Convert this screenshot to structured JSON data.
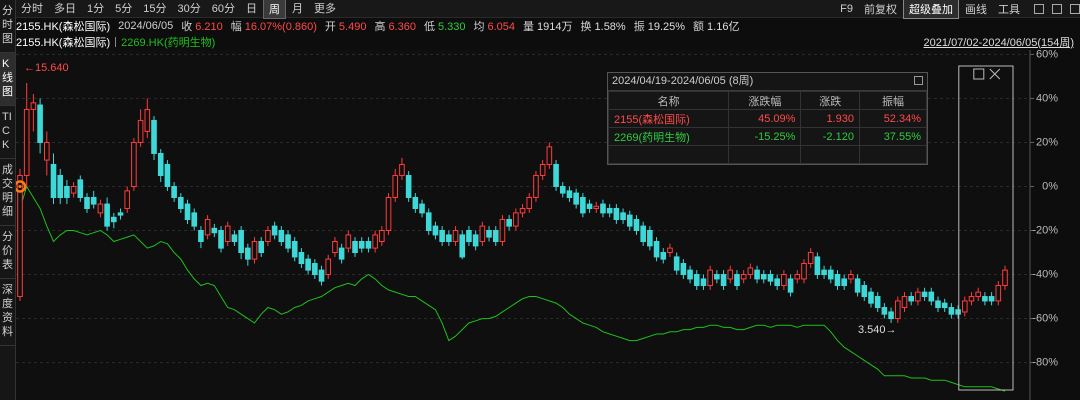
{
  "toolbar": {
    "tabs": [
      {
        "label": "分时"
      },
      {
        "label": "多日"
      },
      {
        "label": "1分"
      },
      {
        "label": "5分"
      },
      {
        "label": "15分"
      },
      {
        "label": "30分"
      },
      {
        "label": "60分"
      },
      {
        "label": "日"
      },
      {
        "label": "周",
        "active": true
      },
      {
        "label": "月"
      },
      {
        "label": "更多"
      }
    ],
    "tools": [
      {
        "label": "F9"
      },
      {
        "label": "前复权"
      },
      {
        "label": "超级叠加",
        "active": true
      },
      {
        "label": "画线"
      },
      {
        "label": "工具"
      }
    ]
  },
  "sidebar": [
    {
      "label": "分时图"
    },
    {
      "label": "K线图",
      "active": true
    },
    {
      "label": "TICK"
    },
    {
      "label": "成交明细"
    },
    {
      "label": "分价表"
    },
    {
      "label": "深度资料"
    }
  ],
  "quote": {
    "symbol": "2155.HK(森松国际)",
    "date": "2024/06/05",
    "fields": [
      {
        "label": "收",
        "value": "6.210",
        "color": "#ff4a4a"
      },
      {
        "label": "幅",
        "value": "16.07%(0.860)",
        "color": "#ff4a4a"
      },
      {
        "label": "开",
        "value": "5.490",
        "color": "#ff4a4a"
      },
      {
        "label": "高",
        "value": "6.360",
        "color": "#ff4a4a"
      },
      {
        "label": "低",
        "value": "5.330",
        "color": "#2ecc40"
      },
      {
        "label": "均",
        "value": "6.054",
        "color": "#ff4a4a"
      },
      {
        "label": "量",
        "value": "1914万",
        "color": "#dddddd"
      },
      {
        "label": "换",
        "value": "1.58%",
        "color": "#dddddd"
      },
      {
        "label": "振",
        "value": "19.25%",
        "color": "#dddddd"
      },
      {
        "label": "额",
        "value": "1.16亿",
        "color": "#dddddd"
      }
    ]
  },
  "chart_data": {
    "type": "candlestick",
    "range": "2021/07/02-2024/06/05(154周)",
    "annotations": [
      {
        "text": "←15.640"
      },
      {
        "text": "3.540→"
      }
    ],
    "ylim": [
      -97,
      62
    ],
    "yticks": [
      {
        "value": 60,
        "label": "60%"
      },
      {
        "value": 40,
        "label": "40%"
      },
      {
        "value": 20,
        "label": "20%"
      },
      {
        "value": 0,
        "label": "0%"
      },
      {
        "value": -20,
        "label": "-20%"
      },
      {
        "value": -40,
        "label": "-40%"
      },
      {
        "value": -60,
        "label": "-60%"
      },
      {
        "value": -80,
        "label": "-80%"
      }
    ],
    "grid": true,
    "series": [
      {
        "name": "2155.HK(森松国际)",
        "up_color": "#ff3b3b",
        "down_color": "#3fd8d8",
        "ohlc": [
          [
            -50,
            5,
            8,
            -52
          ],
          [
            5,
            35,
            47,
            0
          ],
          [
            35,
            38,
            42,
            25
          ],
          [
            37,
            20,
            40,
            15
          ],
          [
            12,
            20,
            25,
            5
          ],
          [
            10,
            -5,
            15,
            -8
          ],
          [
            5,
            -5,
            8,
            -8
          ],
          [
            0,
            -5,
            3,
            -8
          ],
          [
            -3,
            0,
            2,
            -5
          ],
          [
            3,
            -5,
            5,
            -7
          ],
          [
            -5,
            -10,
            -3,
            -12
          ],
          [
            -5,
            -8,
            -2,
            -10
          ],
          [
            -12,
            -8,
            -6,
            -14
          ],
          [
            -8,
            -18,
            -5,
            -20
          ],
          [
            -14,
            -16,
            -12,
            -19
          ],
          [
            -12,
            -13,
            -10,
            -15
          ],
          [
            -10,
            -2,
            0,
            -12
          ],
          [
            0,
            20,
            22,
            -2
          ],
          [
            20,
            30,
            35,
            18
          ],
          [
            25,
            35,
            40,
            22
          ],
          [
            30,
            15,
            32,
            12
          ],
          [
            15,
            5,
            17,
            2
          ],
          [
            10,
            0,
            12,
            -2
          ],
          [
            0,
            -5,
            2,
            -7
          ],
          [
            -5,
            -10,
            -3,
            -12
          ],
          [
            -8,
            -15,
            -6,
            -17
          ],
          [
            -12,
            -18,
            -10,
            -20
          ],
          [
            -20,
            -25,
            -18,
            -28
          ],
          [
            -22,
            -15,
            -13,
            -24
          ],
          [
            -19,
            -21,
            -17,
            -23
          ],
          [
            -20,
            -28,
            -18,
            -30
          ],
          [
            -25,
            -18,
            -16,
            -27
          ],
          [
            -22,
            -25,
            -20,
            -27
          ],
          [
            -20,
            -30,
            -18,
            -33
          ],
          [
            -28,
            -33,
            -26,
            -36
          ],
          [
            -33,
            -25,
            -23,
            -35
          ],
          [
            -25,
            -30,
            -23,
            -32
          ],
          [
            -25,
            -20,
            -18,
            -27
          ],
          [
            -18,
            -22,
            -16,
            -24
          ],
          [
            -20,
            -25,
            -18,
            -27
          ],
          [
            -22,
            -28,
            -20,
            -30
          ],
          [
            -25,
            -32,
            -23,
            -34
          ],
          [
            -30,
            -35,
            -28,
            -37
          ],
          [
            -33,
            -38,
            -31,
            -40
          ],
          [
            -35,
            -40,
            -33,
            -42
          ],
          [
            -38,
            -43,
            -36,
            -45
          ],
          [
            -40,
            -33,
            -31,
            -42
          ],
          [
            -30,
            -25,
            -23,
            -32
          ],
          [
            -28,
            -33,
            -26,
            -35
          ],
          [
            -28,
            -22,
            -20,
            -30
          ],
          [
            -25,
            -30,
            -23,
            -32
          ],
          [
            -25,
            -28,
            -23,
            -30
          ],
          [
            -25,
            -28,
            -23,
            -30
          ],
          [
            -28,
            -22,
            -20,
            -30
          ],
          [
            -25,
            -20,
            -18,
            -27
          ],
          [
            -20,
            -5,
            -3,
            -22
          ],
          [
            -5,
            5,
            8,
            -7
          ],
          [
            5,
            10,
            13,
            3
          ],
          [
            5,
            -5,
            7,
            -7
          ],
          [
            -5,
            -10,
            -3,
            -12
          ],
          [
            -8,
            -12,
            -6,
            -14
          ],
          [
            -12,
            -20,
            -10,
            -22
          ],
          [
            -18,
            -22,
            -16,
            -24
          ],
          [
            -20,
            -25,
            -18,
            -27
          ],
          [
            -22,
            -25,
            -20,
            -27
          ],
          [
            -25,
            -20,
            -18,
            -27
          ],
          [
            -22,
            -32,
            -20,
            -33
          ],
          [
            -20,
            -25,
            -18,
            -27
          ],
          [
            -22,
            -27,
            -20,
            -29
          ],
          [
            -25,
            -18,
            -16,
            -27
          ],
          [
            -20,
            -23,
            -18,
            -25
          ],
          [
            -20,
            -25,
            -18,
            -27
          ],
          [
            -25,
            -15,
            -13,
            -27
          ],
          [
            -15,
            -18,
            -13,
            -20
          ],
          [
            -18,
            -12,
            -10,
            -20
          ],
          [
            -12,
            -10,
            -8,
            -14
          ],
          [
            -10,
            -5,
            -3,
            -12
          ],
          [
            -5,
            5,
            7,
            -7
          ],
          [
            5,
            10,
            12,
            3
          ],
          [
            10,
            18,
            20,
            8
          ],
          [
            10,
            0,
            12,
            -2
          ],
          [
            0,
            -3,
            2,
            -5
          ],
          [
            -2,
            -5,
            0,
            -7
          ],
          [
            -3,
            -8,
            -1,
            -10
          ],
          [
            -5,
            -12,
            -3,
            -14
          ],
          [
            -8,
            -10,
            -6,
            -12
          ],
          [
            -10,
            -9,
            -7,
            -12
          ],
          [
            -8,
            -12,
            -6,
            -14
          ],
          [
            -10,
            -12,
            -8,
            -14
          ],
          [
            -10,
            -15,
            -8,
            -17
          ],
          [
            -12,
            -15,
            -10,
            -17
          ],
          [
            -13,
            -18,
            -11,
            -20
          ],
          [
            -15,
            -20,
            -13,
            -22
          ],
          [
            -18,
            -25,
            -16,
            -27
          ],
          [
            -20,
            -27,
            -18,
            -29
          ],
          [
            -25,
            -32,
            -23,
            -34
          ],
          [
            -30,
            -33,
            -28,
            -35
          ],
          [
            -30,
            -28,
            -26,
            -32
          ],
          [
            -32,
            -38,
            -30,
            -40
          ],
          [
            -35,
            -40,
            -33,
            -42
          ],
          [
            -38,
            -42,
            -36,
            -44
          ],
          [
            -40,
            -45,
            -38,
            -47
          ],
          [
            -42,
            -45,
            -40,
            -47
          ],
          [
            -45,
            -38,
            -36,
            -47
          ],
          [
            -40,
            -42,
            -38,
            -44
          ],
          [
            -40,
            -45,
            -38,
            -47
          ],
          [
            -42,
            -38,
            -36,
            -44
          ],
          [
            -40,
            -45,
            -38,
            -47
          ],
          [
            -42,
            -40,
            -38,
            -44
          ],
          [
            -40,
            -37,
            -35,
            -42
          ],
          [
            -38,
            -42,
            -36,
            -44
          ],
          [
            -40,
            -42,
            -38,
            -44
          ],
          [
            -40,
            -43,
            -38,
            -45
          ],
          [
            -42,
            -45,
            -40,
            -47
          ],
          [
            -45,
            -40,
            -38,
            -47
          ],
          [
            -42,
            -48,
            -40,
            -50
          ],
          [
            -42,
            -40,
            -38,
            -44
          ],
          [
            -42,
            -35,
            -33,
            -44
          ],
          [
            -35,
            -30,
            -28,
            -37
          ],
          [
            -32,
            -40,
            -30,
            -42
          ],
          [
            -38,
            -40,
            -36,
            -42
          ],
          [
            -38,
            -42,
            -36,
            -44
          ],
          [
            -40,
            -45,
            -38,
            -47
          ],
          [
            -42,
            -45,
            -40,
            -47
          ],
          [
            -42,
            -40,
            -38,
            -44
          ],
          [
            -42,
            -48,
            -40,
            -50
          ],
          [
            -45,
            -50,
            -43,
            -52
          ],
          [
            -48,
            -53,
            -46,
            -55
          ],
          [
            -50,
            -55,
            -48,
            -57
          ],
          [
            -55,
            -58,
            -53,
            -60
          ],
          [
            -57,
            -60,
            -55,
            -62
          ],
          [
            -60,
            -52,
            -50,
            -62
          ],
          [
            -55,
            -50,
            -48,
            -57
          ],
          [
            -50,
            -52,
            -48,
            -54
          ],
          [
            -52,
            -48,
            -46,
            -54
          ],
          [
            -48,
            -50,
            -46,
            -52
          ],
          [
            -48,
            -52,
            -46,
            -54
          ],
          [
            -52,
            -55,
            -50,
            -57
          ],
          [
            -53,
            -55,
            -51,
            -57
          ],
          [
            -55,
            -58,
            -53,
            -60
          ],
          [
            -56,
            -58,
            -54,
            -60
          ],
          [
            -57,
            -52,
            -50,
            -59
          ],
          [
            -52,
            -50,
            -48,
            -54
          ],
          [
            -50,
            -48,
            -46,
            -52
          ],
          [
            -50,
            -52,
            -48,
            -54
          ],
          [
            -50,
            -52,
            -48,
            -54
          ],
          [
            -52,
            -45,
            -43,
            -54
          ],
          [
            -45,
            -38,
            -36,
            -47
          ]
        ]
      },
      {
        "name": "2269.HK(药明生物)",
        "type": "line",
        "color": "#1fbf1f",
        "values": [
          -10,
          0,
          -5,
          -10,
          -18,
          -25,
          -22,
          -20,
          -20,
          -21,
          -22,
          -21,
          -20,
          -22,
          -25,
          -24,
          -23,
          -22,
          -25,
          -28,
          -27,
          -25,
          -26,
          -30,
          -33,
          -38,
          -42,
          -45,
          -44,
          -45,
          -50,
          -55,
          -56,
          -58,
          -60,
          -62,
          -58,
          -55,
          -56,
          -58,
          -57,
          -55,
          -54,
          -52,
          -51,
          -50,
          -48,
          -46,
          -45,
          -44,
          -45,
          -42,
          -40,
          -42,
          -45,
          -47,
          -48,
          -49,
          -50,
          -50,
          -52,
          -54,
          -56,
          -62,
          -70,
          -68,
          -65,
          -62,
          -61,
          -60,
          -60,
          -59,
          -57,
          -55,
          -53,
          -51,
          -50,
          -50,
          -51,
          -52,
          -53,
          -55,
          -58,
          -60,
          -62,
          -63,
          -64,
          -66,
          -67,
          -68,
          -69,
          -70,
          -70,
          -69,
          -68,
          -67,
          -67,
          -66,
          -66,
          -65,
          -65,
          -64,
          -64,
          -63,
          -63,
          -64,
          -64,
          -65,
          -65,
          -64,
          -63,
          -63,
          -64,
          -63,
          -63,
          -63,
          -64,
          -63,
          -63,
          -63,
          -63,
          -66,
          -70,
          -73,
          -75,
          -77,
          -79,
          -81,
          -83,
          -86,
          -86,
          -86,
          -86,
          -87,
          -87,
          -87,
          -88,
          -88,
          -88,
          -89,
          -90,
          -91,
          -91,
          -91,
          -91,
          -91,
          -92,
          -93
        ]
      }
    ]
  },
  "compare_panel": {
    "title": "2024/04/19-2024/06/05 (8周)",
    "columns": [
      "名称",
      "涨跌幅",
      "涨跌",
      "振幅"
    ],
    "rows": [
      {
        "color": "#ff4a4a",
        "cells": [
          "2155(森松国际)",
          "45.09%",
          "1.930",
          "52.34%"
        ]
      },
      {
        "color": "#2ecc40",
        "cells": [
          "2269(药明生物)",
          "-15.25%",
          "-2.120",
          "37.55%"
        ]
      }
    ]
  }
}
